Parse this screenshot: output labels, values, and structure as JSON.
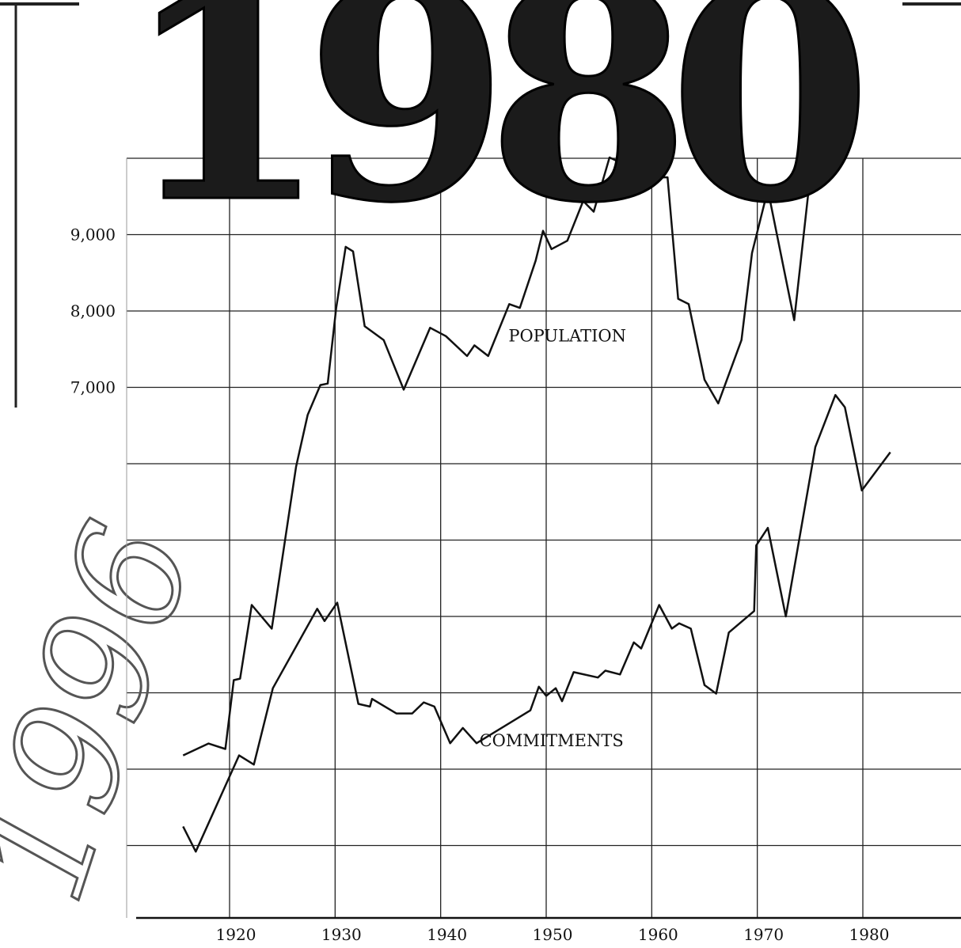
{
  "chart_data": {
    "type": "line",
    "logo_text": "1980",
    "script_text": "1996",
    "annotations": [
      {
        "text": "POPULATION",
        "x": 1952,
        "y": 7600
      },
      {
        "text": "COMMITMENTS",
        "x": 1950.5,
        "y": 2300
      }
    ],
    "xlim": [
      1911,
      1989
    ],
    "xticks": [
      1920,
      1930,
      1940,
      1950,
      1960,
      1970,
      1980
    ],
    "ylim": [
      0,
      12000
    ],
    "yticks": [
      {
        "value": 7000,
        "label": "7,000"
      },
      {
        "value": 8000,
        "label": "8,000"
      },
      {
        "value": 9000,
        "label": "9,000"
      }
    ],
    "unlabeled_yticks": [
      1000,
      2000,
      3000,
      4000,
      5000,
      6000,
      10000
    ],
    "grid": true,
    "series": [
      {
        "name": "POPULATION",
        "color": "#111111",
        "x": [
          1915.6,
          1918,
          1919.6,
          1920.4,
          1921,
          1922.1,
          1924,
          1926.3,
          1927.4,
          1928.6,
          1929.3,
          1930.1,
          1931,
          1931.7,
          1932.8,
          1934.6,
          1936.5,
          1939,
          1940.5,
          1942.5,
          1943.2,
          1944.5,
          1946.5,
          1947.5,
          1949,
          1949.7,
          1950.5,
          1952,
          1953.5,
          1954.5,
          1956,
          1960,
          1961.5,
          1962.5,
          1963.5,
          1965,
          1966.3,
          1968.5,
          1969.5,
          1971,
          1973.5,
          1975
        ],
        "values": [
          2180,
          2336,
          2264,
          3166,
          3186,
          4150,
          3840,
          5960,
          6640,
          7030,
          7050,
          8040,
          8840,
          8780,
          7800,
          7620,
          6970,
          7780,
          7670,
          7410,
          7550,
          7410,
          8090,
          8040,
          8660,
          9050,
          8810,
          8920,
          9440,
          9300,
          10010,
          9750,
          9750,
          8160,
          8090,
          7100,
          6790,
          7620,
          8760,
          9590,
          7880,
          9750
        ]
      },
      {
        "name": "COMMITMENTS",
        "color": "#111111",
        "x": [
          1915.6,
          1916.8,
          1920.9,
          1922.3,
          1924.1,
          1928.3,
          1929,
          1930.2,
          1932.2,
          1933.3,
          1933.5,
          1935.8,
          1937.3,
          1938.4,
          1939.4,
          1940.9,
          1942.1,
          1943.4,
          1948.5,
          1949.3,
          1950,
          1950.9,
          1951.5,
          1952.6,
          1954.9,
          1955.6,
          1957,
          1958.3,
          1959,
          1960.7,
          1961.9,
          1962.6,
          1963.7,
          1965,
          1966.1,
          1967.3,
          1969.7,
          1969.9,
          1971,
          1972.7,
          1975.5,
          1977.4,
          1978.3,
          1979.9,
          1982.6
        ],
        "values": [
          1250,
          920,
          2180,
          2060,
          3060,
          4100,
          3940,
          4180,
          2855,
          2820,
          2920,
          2730,
          2730,
          2875,
          2820,
          2340,
          2540,
          2340,
          2770,
          3080,
          2960,
          3060,
          2890,
          3270,
          3200,
          3290,
          3240,
          3660,
          3580,
          4150,
          3840,
          3910,
          3840,
          3100,
          2990,
          3790,
          4070,
          4930,
          5160,
          4000,
          6220,
          6900,
          6740,
          5650,
          6150
        ]
      }
    ]
  }
}
